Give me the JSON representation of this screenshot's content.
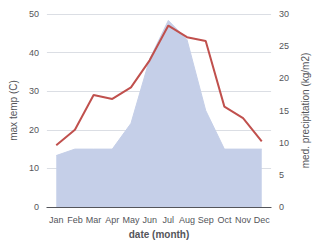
{
  "chart_data": {
    "type": "line",
    "categories": [
      "Jan",
      "Feb",
      "Mar",
      "Apr",
      "May",
      "Jun",
      "Jul",
      "Aug",
      "Sep",
      "Oct",
      "Nov",
      "Dec"
    ],
    "xlabel": "date (month)",
    "ylabel": "max temp (C)",
    "y2label": "med. precipitation (kg/m2)",
    "series": [
      {
        "type": "area",
        "color": "#c5cfe8",
        "axis": "y2",
        "values": [
          8,
          9,
          9,
          9,
          13,
          23,
          29,
          26,
          15,
          9,
          9,
          9
        ]
      },
      {
        "type": "line",
        "color": "#c0504d",
        "values": [
          16,
          20,
          29,
          28,
          31,
          38,
          47,
          44,
          43,
          26,
          23,
          17
        ]
      }
    ],
    "ylim": [
      0,
      50
    ],
    "yticks": [
      0,
      10,
      20,
      30,
      40,
      50
    ],
    "y2lim": [
      0,
      30
    ],
    "y2ticks": [
      0,
      5,
      10,
      15,
      20,
      25,
      30
    ],
    "grid": true
  }
}
